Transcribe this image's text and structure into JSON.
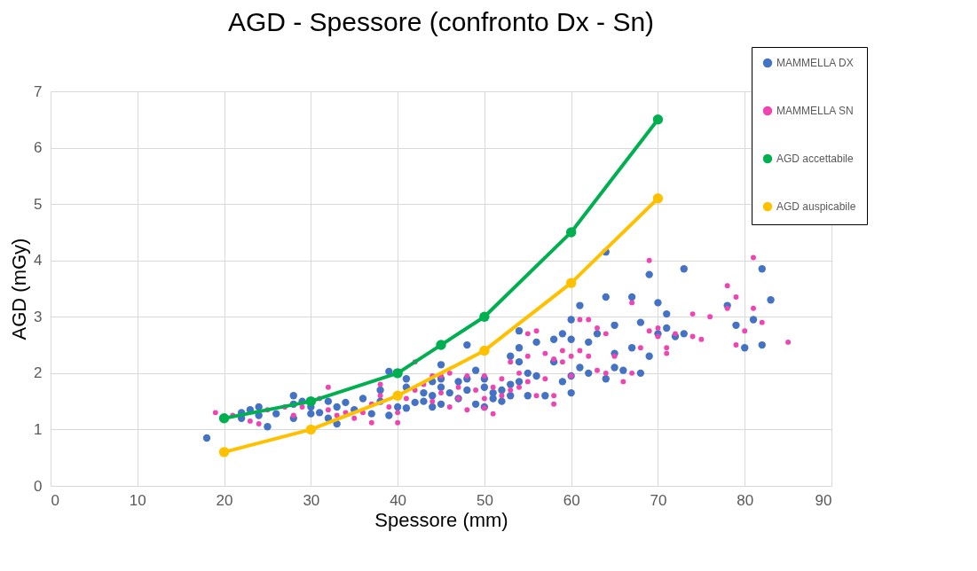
{
  "chart_data": {
    "type": "scatter",
    "title": "AGD - Spessore (confronto Dx - Sn)",
    "xlabel": "Spessore (mm)",
    "ylabel": "AGD (mGy)",
    "xlim": [
      0,
      90
    ],
    "xticks": [
      0,
      10,
      20,
      30,
      40,
      50,
      60,
      70,
      80,
      90
    ],
    "ylim": [
      0,
      7
    ],
    "yticks": [
      0,
      1,
      2,
      3,
      4,
      5,
      6,
      7
    ],
    "grid": true,
    "legend": "top right",
    "marker": "circle",
    "series": [
      {
        "name": "MAMMELLA DX",
        "color": "#4472c4",
        "x": [
          18,
          22,
          22,
          23,
          24,
          24,
          25,
          26,
          28,
          28,
          28,
          29,
          30,
          30,
          31,
          32,
          32,
          33,
          33,
          34,
          35,
          36,
          37,
          38,
          38,
          39,
          39,
          40,
          41,
          41,
          41,
          42,
          43,
          43,
          44,
          44,
          44,
          45,
          45,
          45,
          45,
          46,
          47,
          47,
          48,
          48,
          48,
          49,
          49,
          50,
          50,
          50,
          51,
          51,
          52,
          52,
          53,
          53,
          53,
          54,
          54,
          54,
          54,
          55,
          55,
          56,
          56,
          57,
          58,
          58,
          59,
          59,
          60,
          60,
          60,
          60,
          61,
          61,
          62,
          62,
          63,
          64,
          64,
          64,
          65,
          65,
          65,
          66,
          67,
          67,
          68,
          68,
          69,
          69,
          70,
          70,
          71,
          71,
          72,
          73,
          73,
          78,
          79,
          80,
          81,
          82,
          82,
          83
        ],
        "values": [
          0.85,
          1.3,
          1.2,
          1.35,
          1.4,
          1.25,
          1.05,
          1.28,
          1.6,
          1.45,
          1.2,
          1.5,
          1.4,
          1.28,
          1.3,
          1.5,
          1.2,
          1.4,
          1.1,
          1.48,
          1.35,
          1.55,
          1.28,
          1.7,
          1.5,
          2.03,
          1.25,
          1.4,
          1.9,
          1.75,
          1.38,
          1.48,
          1.65,
          1.5,
          1.85,
          1.6,
          1.4,
          2.15,
          1.9,
          1.75,
          1.45,
          1.65,
          1.85,
          1.55,
          2.5,
          1.9,
          1.7,
          2.05,
          1.45,
          1.9,
          1.75,
          1.4,
          1.65,
          1.55,
          1.7,
          1.5,
          2.3,
          1.8,
          1.6,
          2.75,
          2.45,
          2.2,
          1.85,
          2.0,
          1.6,
          2.55,
          1.95,
          1.6,
          2.6,
          2.2,
          2.7,
          1.85,
          2.95,
          2.6,
          1.95,
          1.65,
          3.2,
          2.1,
          2.55,
          2.0,
          2.7,
          4.15,
          3.35,
          1.9,
          2.85,
          2.35,
          2.1,
          2.05,
          3.35,
          2.45,
          2.9,
          2.0,
          3.75,
          2.3,
          3.25,
          2.7,
          3.05,
          2.8,
          2.65,
          3.85,
          2.7,
          3.2,
          2.85,
          2.45,
          2.95,
          3.85,
          2.5,
          3.3
        ]
      },
      {
        "name": "MAMMELLA SN",
        "color": "#ee45b3",
        "x": [
          19,
          21,
          23,
          24,
          25,
          27,
          28,
          29,
          31,
          32,
          32,
          33,
          34,
          35,
          36,
          37,
          37,
          38,
          38,
          39,
          40,
          40,
          41,
          42,
          42,
          43,
          44,
          44,
          45,
          45,
          46,
          46,
          47,
          47,
          48,
          48,
          49,
          50,
          50,
          50,
          51,
          51,
          52,
          52,
          53,
          53,
          54,
          54,
          55,
          55,
          55,
          56,
          56,
          57,
          57,
          58,
          58,
          58,
          59,
          59,
          60,
          60,
          61,
          61,
          62,
          62,
          63,
          63,
          64,
          64,
          65,
          66,
          67,
          67,
          68,
          69,
          69,
          70,
          70,
          71,
          71,
          72,
          74,
          74,
          75,
          76,
          78,
          78,
          79,
          79,
          80,
          81,
          81,
          82,
          85
        ],
        "values": [
          1.3,
          1.25,
          1.15,
          1.1,
          1.35,
          1.4,
          1.25,
          1.4,
          1.55,
          1.75,
          1.35,
          1.25,
          1.3,
          1.2,
          1.3,
          1.45,
          1.12,
          1.8,
          1.6,
          1.4,
          1.3,
          1.12,
          1.55,
          2.2,
          1.7,
          1.8,
          1.95,
          1.5,
          1.95,
          1.65,
          2.0,
          1.4,
          1.75,
          1.55,
          1.95,
          1.35,
          1.7,
          1.95,
          1.55,
          1.38,
          1.75,
          1.28,
          1.9,
          1.6,
          2.2,
          1.7,
          2.0,
          1.75,
          2.7,
          2.3,
          1.85,
          2.75,
          1.6,
          2.35,
          1.9,
          2.25,
          1.6,
          1.45,
          2.4,
          2.2,
          2.3,
          1.95,
          2.95,
          2.4,
          2.95,
          2.3,
          2.8,
          2.05,
          2.7,
          2.0,
          2.3,
          1.85,
          3.25,
          2.0,
          2.45,
          4.0,
          2.75,
          2.8,
          2.65,
          2.45,
          2.35,
          2.7,
          3.05,
          2.65,
          2.6,
          3.0,
          3.55,
          3.15,
          3.35,
          2.5,
          2.75,
          4.05,
          3.15,
          2.9,
          2.55
        ]
      },
      {
        "name": "AGD accettabile",
        "color": "#00b050",
        "type": "line",
        "x": [
          20,
          30,
          40,
          45,
          50,
          60,
          70
        ],
        "values": [
          1.2,
          1.5,
          2.0,
          2.5,
          3.0,
          4.5,
          6.5
        ]
      },
      {
        "name": "AGD auspicabile",
        "color": "#ffc000",
        "type": "line",
        "x": [
          20,
          30,
          40,
          50,
          60,
          70
        ],
        "values": [
          0.6,
          1.0,
          1.6,
          2.4,
          3.6,
          5.1
        ]
      }
    ]
  }
}
